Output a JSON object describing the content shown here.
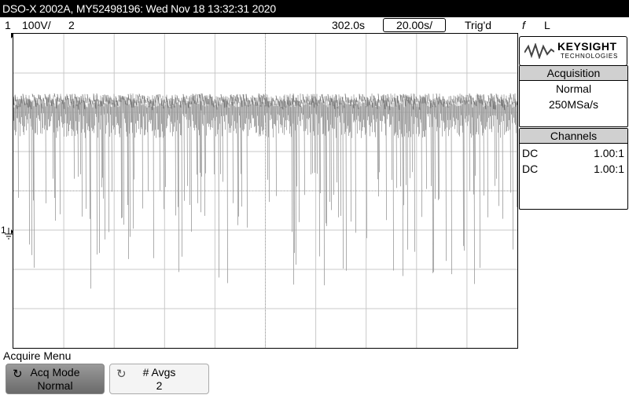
{
  "title_bar": {
    "text": "DSO-X 2002A, MY52498196: Wed Nov 18 13:32:31 2020"
  },
  "status_bar": {
    "channel1_label": "1",
    "channel1_scale": "100V/",
    "channel2_label": "2",
    "time_delay": "302.0s",
    "timebase": "20.00s/",
    "trigger_status": "Trig'd",
    "trigger_slope": "f",
    "trigger_source": "L"
  },
  "side_panel": {
    "logo_main": "KEYSIGHT",
    "logo_sub": "TECHNOLOGIES",
    "acquisition": {
      "header": "Acquisition",
      "mode": "Normal",
      "sample_rate": "250MSa/s"
    },
    "channels": {
      "header": "Channels",
      "rows": [
        {
          "coupling": "DC",
          "probe": "1.00:1"
        },
        {
          "coupling": "DC",
          "probe": "1.00:1"
        }
      ]
    }
  },
  "screen": {
    "ground_marker_label": "1"
  },
  "menu": {
    "title": "Acquire Menu",
    "softkeys": [
      {
        "label": "Acq Mode",
        "value": "Normal"
      },
      {
        "label": "# Avgs",
        "value": "2"
      }
    ]
  },
  "colors": {
    "title_bg": "#000000",
    "trace": "#999999",
    "grid": "#c8c8c8",
    "panel_header": "#d0d0d0"
  }
}
